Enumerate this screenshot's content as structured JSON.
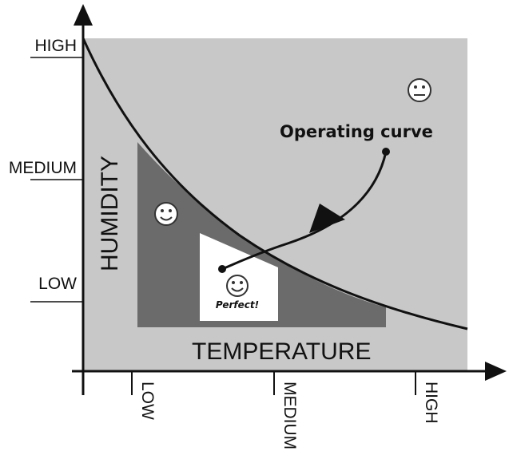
{
  "y_axis": {
    "ticks": [
      "HIGH",
      "MEDIUM",
      "LOW"
    ],
    "label": "HUMIDITY"
  },
  "x_axis": {
    "ticks": [
      "LOW",
      "MEDIUM",
      "HIGH"
    ],
    "label": "TEMPERATURE"
  },
  "annotations": {
    "operating_curve": "Operating curve",
    "perfect": "Perfect!"
  }
}
